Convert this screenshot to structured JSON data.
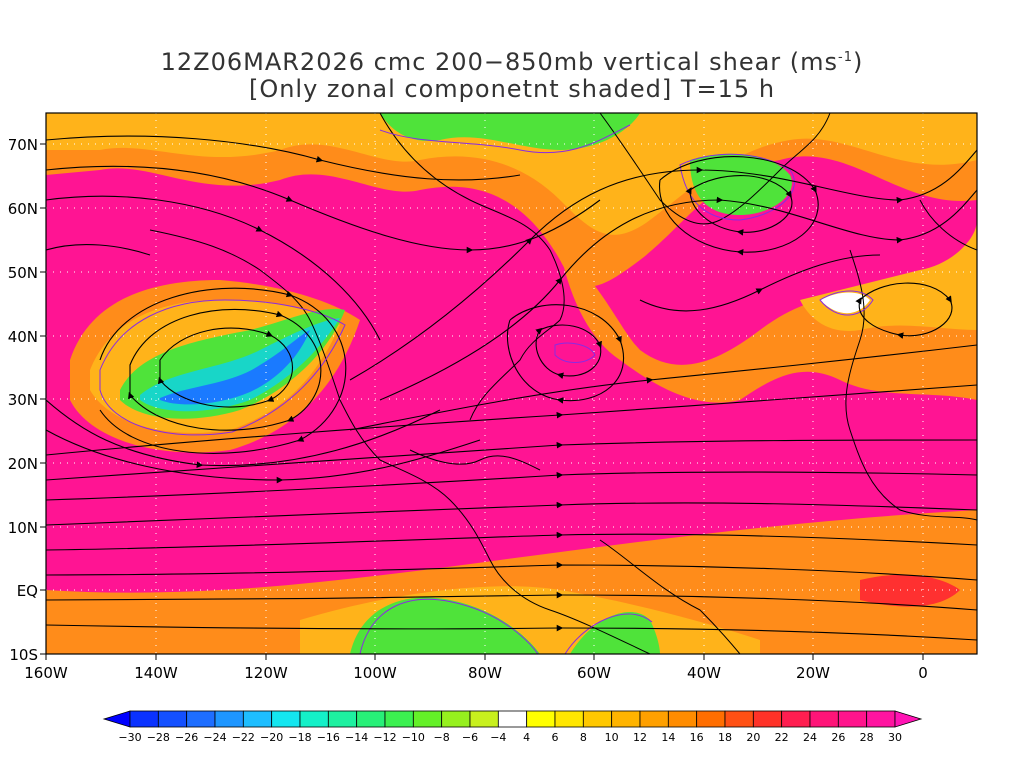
{
  "title": {
    "line1": "12Z06MAR2026 cmc 200−850mb vertical shear (ms",
    "line1_sup": "-1",
    "line1_end": ")",
    "line2": "[Only zonal componetnt shaded] T=15 h"
  },
  "map": {
    "lon_range": [
      -160,
      10
    ],
    "lat_range": [
      -10,
      75
    ],
    "lat_labels": [
      "70N",
      "60N",
      "50N",
      "40N",
      "30N",
      "20N",
      "10N",
      "EQ",
      "10S"
    ],
    "lat_values": [
      70,
      60,
      50,
      40,
      30,
      20,
      10,
      0,
      -10
    ],
    "lon_labels": [
      "160W",
      "140W",
      "120W",
      "100W",
      "80W",
      "60W",
      "40W",
      "20W",
      "0"
    ],
    "lon_values": [
      -160,
      -140,
      -120,
      -100,
      -80,
      -60,
      -40,
      -20,
      0
    ],
    "grid": "dotted",
    "colors": {
      "magenta": "#ff1493",
      "pink": "#ff2d8c",
      "red": "#ff3030",
      "orange": "#ff8c1a",
      "yellow_orange": "#ffb31a",
      "yellow": "#ffee00",
      "green": "#4fe33a",
      "cyan": "#18d6c8",
      "blue": "#1a7aff",
      "coast": "#000000",
      "contour": "#8a2be2"
    }
  },
  "colorbar": {
    "labels": [
      "−30",
      "−28",
      "−26",
      "−24",
      "−22",
      "−20",
      "−18",
      "−16",
      "−14",
      "−12",
      "−10",
      "−8",
      "−6",
      "−4",
      "4",
      "6",
      "8",
      "10",
      "12",
      "14",
      "16",
      "18",
      "20",
      "22",
      "24",
      "26",
      "28",
      "30"
    ],
    "colors": [
      "#0000ff",
      "#0a32ff",
      "#1450ff",
      "#1e6eff",
      "#1e96ff",
      "#1ebeff",
      "#14e6f0",
      "#14f0c8",
      "#1ef0a0",
      "#28f078",
      "#3cf050",
      "#64f028",
      "#96f01e",
      "#c8f01e",
      "#ffffff",
      "#ffff00",
      "#ffe600",
      "#ffc800",
      "#ffb400",
      "#ffa000",
      "#ff8c00",
      "#ff6e00",
      "#ff5014",
      "#ff3228",
      "#ff1e50",
      "#ff1478",
      "#ff148c",
      "#ff14a0",
      "#ff14b4"
    ]
  }
}
